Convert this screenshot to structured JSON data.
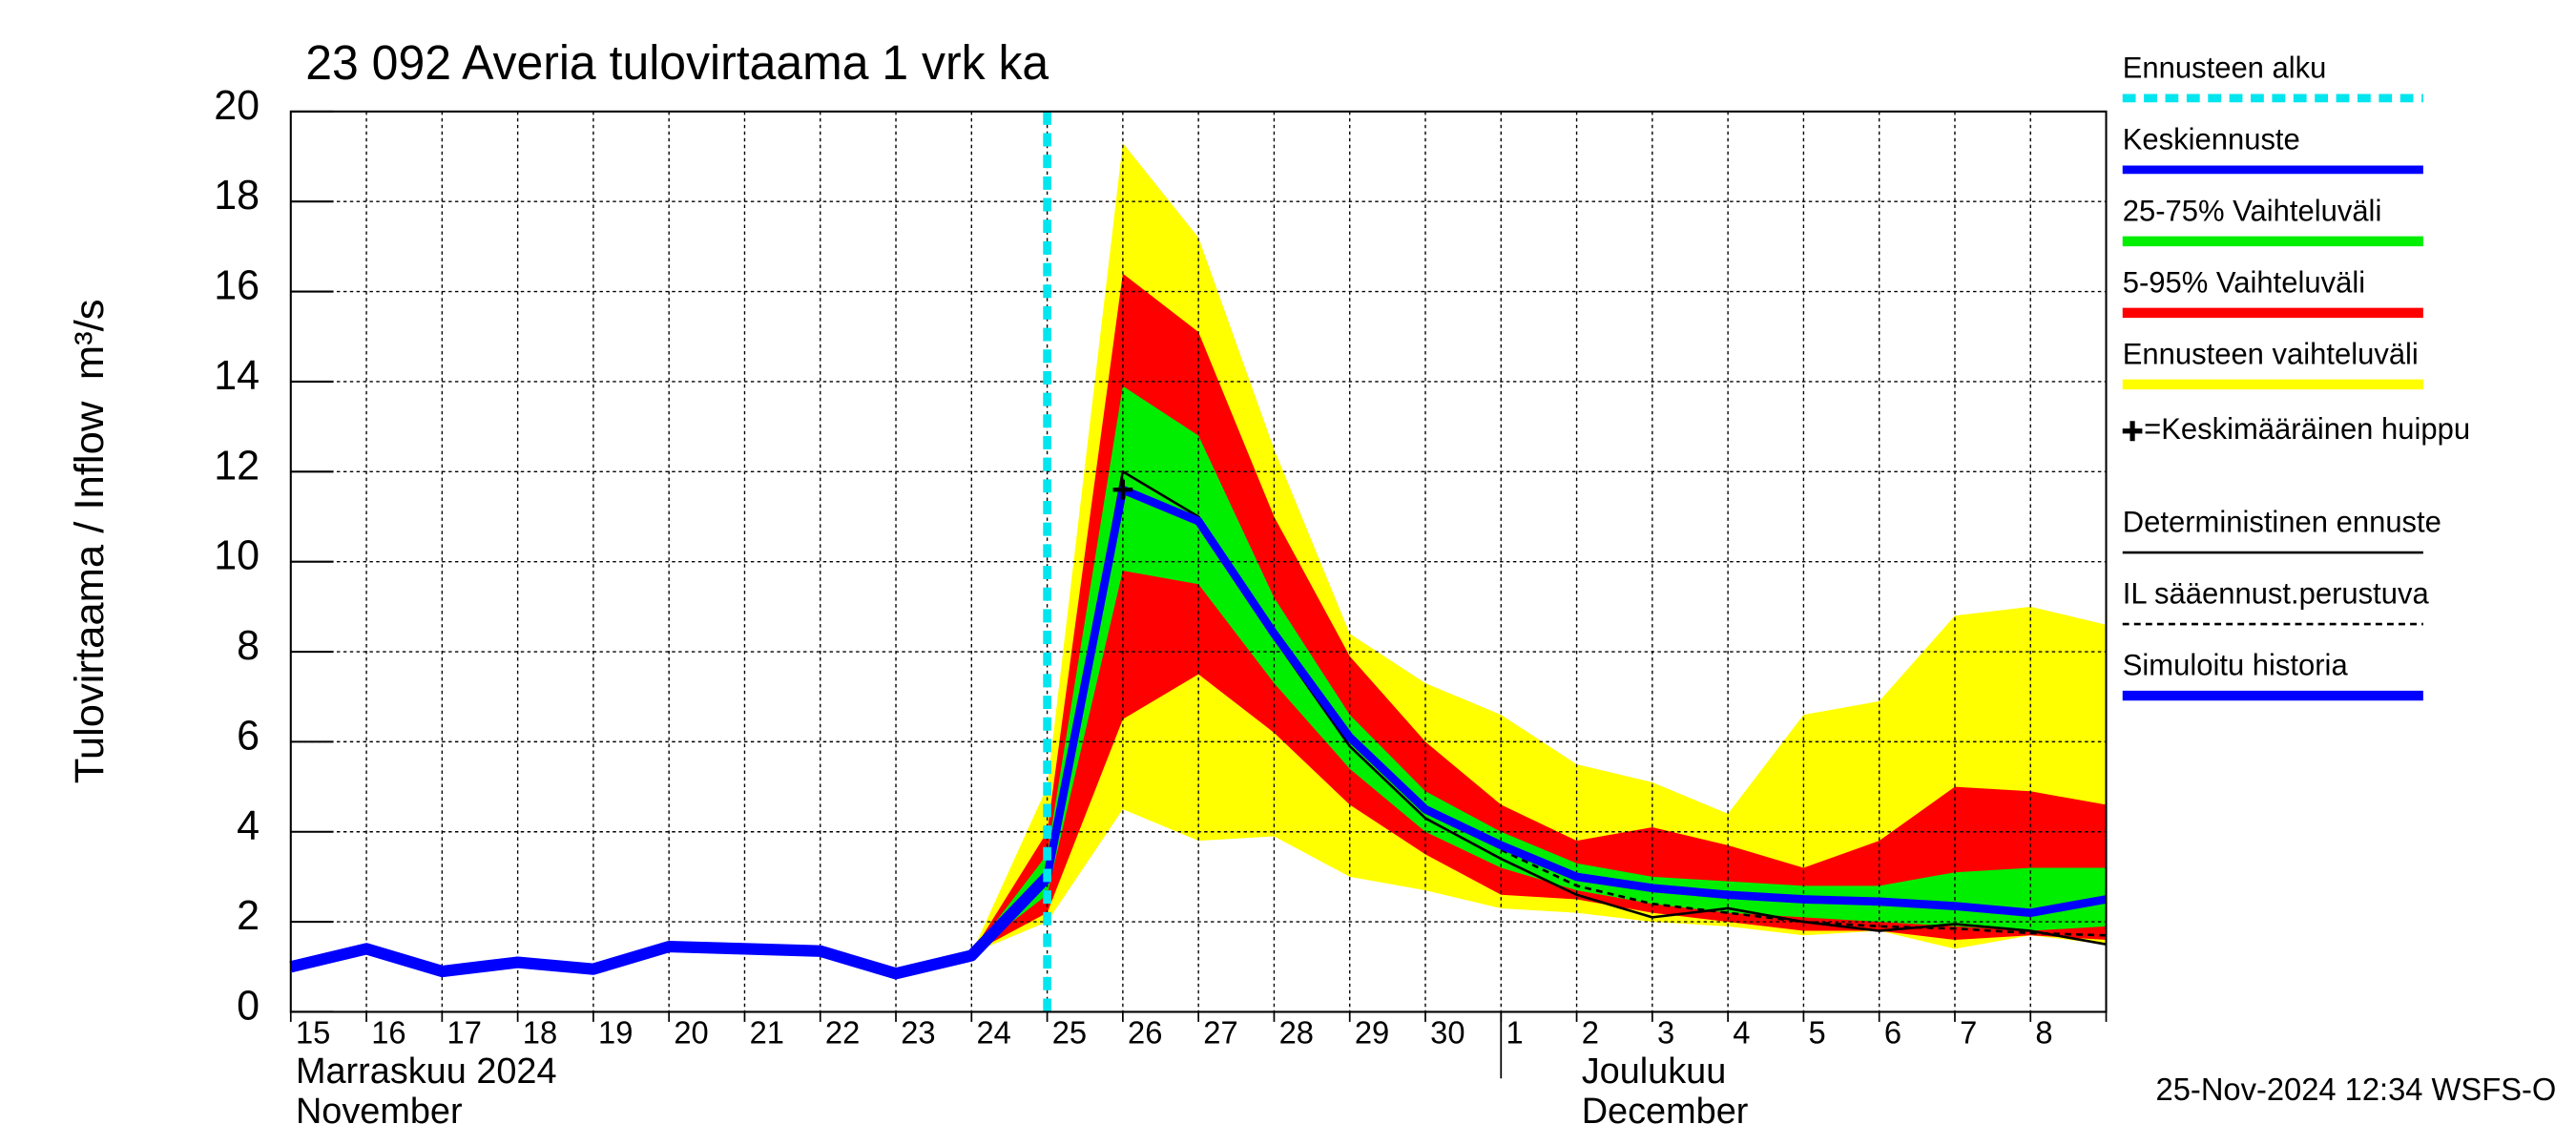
{
  "chart_data": {
    "type": "line",
    "title": "23 092 Averia tulovirtaama 1 vrk ka",
    "ylabel": "Tulovirtaama / Inflow",
    "yunit": "m³/s",
    "categories": [
      "15",
      "16",
      "17",
      "18",
      "19",
      "20",
      "21",
      "22",
      "23",
      "24",
      "25",
      "26",
      "27",
      "28",
      "29",
      "30",
      "1",
      "2",
      "3",
      "4",
      "5",
      "6",
      "7",
      "8",
      null
    ],
    "month_labels": [
      {
        "index": 0,
        "lines": [
          "Marraskuu 2024",
          "November"
        ]
      },
      {
        "index": 17,
        "lines": [
          "Joulukuu",
          "December"
        ]
      }
    ],
    "ylim": [
      0,
      20
    ],
    "yticks": [
      0,
      2,
      4,
      6,
      8,
      10,
      12,
      14,
      16,
      18,
      20
    ],
    "grid": true,
    "forecast_start": {
      "name": "Ennusteen alku",
      "color": "#00e5ee",
      "x": 10
    },
    "series": [
      {
        "name": "Keskiennuste",
        "kind": "line",
        "color": "#0000ff",
        "width": 5,
        "values": [
          null,
          null,
          null,
          null,
          null,
          null,
          null,
          null,
          null,
          null,
          3.0,
          11.6,
          10.9,
          8.4,
          6.1,
          4.5,
          3.7,
          3.0,
          2.75,
          2.6,
          2.5,
          2.45,
          2.35,
          2.2,
          2.5
        ]
      },
      {
        "name": "25-75% Vaihteluväli",
        "kind": "band",
        "color": "#00ee00",
        "lower": [
          null,
          null,
          null,
          null,
          null,
          null,
          null,
          null,
          null,
          1.3,
          2.6,
          9.8,
          9.5,
          7.3,
          5.4,
          4.0,
          3.2,
          2.7,
          2.4,
          2.2,
          2.1,
          2.0,
          1.9,
          1.8,
          1.9
        ],
        "upper": [
          null,
          null,
          null,
          null,
          null,
          null,
          null,
          null,
          null,
          1.3,
          3.5,
          13.9,
          12.8,
          9.2,
          6.6,
          4.9,
          4.0,
          3.3,
          3.0,
          2.9,
          2.8,
          2.8,
          3.1,
          3.2,
          3.2
        ]
      },
      {
        "name": "5-95% Vaihteluväli",
        "kind": "band",
        "color": "#ff0000",
        "lower": [
          null,
          null,
          null,
          null,
          null,
          null,
          null,
          null,
          null,
          1.3,
          2.2,
          6.5,
          7.5,
          6.2,
          4.6,
          3.5,
          2.6,
          2.5,
          2.2,
          2.0,
          1.8,
          1.8,
          1.6,
          1.7,
          1.6
        ],
        "upper": [
          null,
          null,
          null,
          null,
          null,
          null,
          null,
          null,
          null,
          1.3,
          4.0,
          16.4,
          15.1,
          11.0,
          7.9,
          6.0,
          4.6,
          3.8,
          4.1,
          3.7,
          3.2,
          3.8,
          5.0,
          4.9,
          4.6
        ]
      },
      {
        "name": "Ennusteen vaihteluväli",
        "kind": "band",
        "color": "#ffff00",
        "lower": [
          null,
          null,
          null,
          null,
          null,
          null,
          null,
          null,
          null,
          1.3,
          2.0,
          4.5,
          3.8,
          3.9,
          3.0,
          2.7,
          2.3,
          2.2,
          2.0,
          1.9,
          1.7,
          1.8,
          1.4,
          1.7,
          1.5
        ],
        "upper": [
          null,
          null,
          null,
          null,
          null,
          null,
          null,
          null,
          null,
          1.3,
          5.0,
          19.3,
          17.2,
          12.5,
          8.4,
          7.3,
          6.6,
          5.5,
          5.1,
          4.4,
          6.6,
          6.9,
          8.8,
          9.0,
          8.6
        ]
      },
      {
        "name": "=Keskimääräinen huippu",
        "kind": "peak",
        "color": "#000000",
        "x": 11,
        "value": 11.6
      },
      {
        "name": "Deterministinen ennuste",
        "kind": "line",
        "color": "#000000",
        "width": 1.5,
        "values": [
          null,
          null,
          null,
          null,
          null,
          null,
          null,
          null,
          null,
          1.3,
          2.9,
          12.0,
          11.0,
          8.3,
          5.9,
          4.3,
          3.4,
          2.6,
          2.1,
          2.3,
          2.0,
          1.8,
          1.95,
          1.8,
          1.5
        ]
      },
      {
        "name": "IL sääennust.perustuva",
        "kind": "line",
        "color": "#000000",
        "width": 1.5,
        "dashed": true,
        "values": [
          null,
          null,
          null,
          null,
          null,
          null,
          null,
          null,
          null,
          null,
          null,
          null,
          null,
          null,
          null,
          null,
          3.6,
          2.8,
          2.4,
          2.2,
          2.0,
          1.9,
          1.85,
          1.75,
          1.7
        ]
      },
      {
        "name": "Simuloitu historia",
        "kind": "line",
        "color": "#0000ff",
        "width": 7,
        "values": [
          1.0,
          1.4,
          0.9,
          1.1,
          0.95,
          1.45,
          1.4,
          1.35,
          0.85,
          1.25,
          3.0,
          null,
          null,
          null,
          null,
          null,
          null,
          null,
          null,
          null,
          null,
          null,
          null,
          null,
          null
        ]
      }
    ],
    "timestamp": "25-Nov-2024 12:34 WSFS-O"
  }
}
